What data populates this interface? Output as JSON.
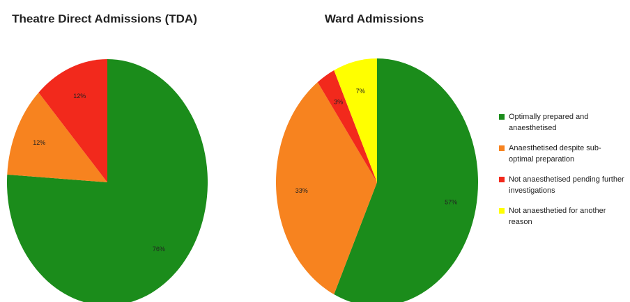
{
  "chart_data": [
    {
      "type": "pie",
      "title": "Theatre Direct Admissions (TDA)",
      "categories": [
        "Optimally prepared and anaesthetised",
        "Anaesthetised despite sub-optimal preparation",
        "Not anaesthetised pending further investigations"
      ],
      "values": [
        76,
        12,
        12
      ],
      "value_labels": [
        "76%",
        "12%",
        "12%"
      ],
      "colors": [
        "#1b8c1b",
        "#f7831f",
        "#f2291c"
      ]
    },
    {
      "type": "pie",
      "title": "Ward Admissions",
      "categories": [
        "Optimally prepared and anaesthetised",
        "Anaesthetised despite sub-optimal preparation",
        "Not anaesthetised pending further investigations",
        "Not anaesthetied for another reason"
      ],
      "values": [
        57,
        33,
        3,
        7
      ],
      "value_labels": [
        "57%",
        "33%",
        "3%",
        "7%"
      ],
      "colors": [
        "#1b8c1b",
        "#f7831f",
        "#f2291c",
        "#ffff00"
      ]
    }
  ]
}
